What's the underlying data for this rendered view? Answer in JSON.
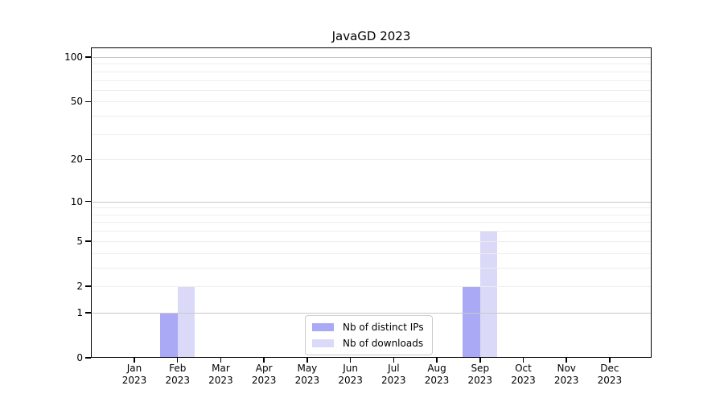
{
  "chart_data": {
    "type": "bar",
    "title": "JavaGD 2023",
    "categories": [
      "Jan 2023",
      "Feb 2023",
      "Mar 2023",
      "Apr 2023",
      "May 2023",
      "Jun 2023",
      "Jul 2023",
      "Aug 2023",
      "Sep 2023",
      "Oct 2023",
      "Nov 2023",
      "Dec 2023"
    ],
    "series": [
      {
        "name": "Nb of distinct IPs",
        "color": "#a9a9f6",
        "values": [
          0,
          1,
          0,
          0,
          0,
          0,
          0,
          0,
          2,
          0,
          0,
          0
        ]
      },
      {
        "name": "Nb of downloads",
        "color": "#dadaf8",
        "values": [
          0,
          2,
          0,
          0,
          0,
          0,
          0,
          0,
          6,
          0,
          0,
          0
        ]
      }
    ],
    "xlabel": "",
    "ylabel": "",
    "yaxis": {
      "scale": "log1p",
      "ticks": [
        0,
        1,
        2,
        5,
        10,
        20,
        50,
        100
      ],
      "minor_gridlines": [
        2,
        3,
        4,
        5,
        6,
        7,
        8,
        9,
        20,
        30,
        40,
        50,
        60,
        70,
        80,
        90
      ],
      "decade_gridlines": [
        1,
        10,
        100
      ],
      "ylim": [
        0,
        116
      ]
    },
    "grid": true,
    "legend_position": "bottom-center"
  },
  "colors": {
    "grid_minor": "#ededed",
    "grid_decade": "#c8c8c8",
    "axis": "#000000",
    "legend_border": "#cbcbcb",
    "background": "#ffffff"
  }
}
